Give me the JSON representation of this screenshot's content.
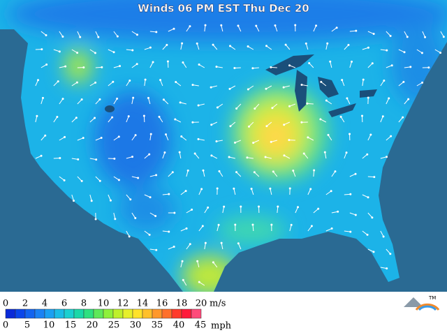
{
  "title": "Winds 06 PM EST Thu Dec 20",
  "legend": {
    "metric": {
      "ticks": [
        0,
        2,
        4,
        6,
        8,
        10,
        12,
        14,
        16,
        18,
        20
      ],
      "unit": "m/s"
    },
    "imperial": {
      "ticks": [
        0,
        5,
        10,
        15,
        20,
        25,
        30,
        35,
        40,
        45
      ],
      "unit": "mph"
    }
  },
  "logo": "TM"
}
